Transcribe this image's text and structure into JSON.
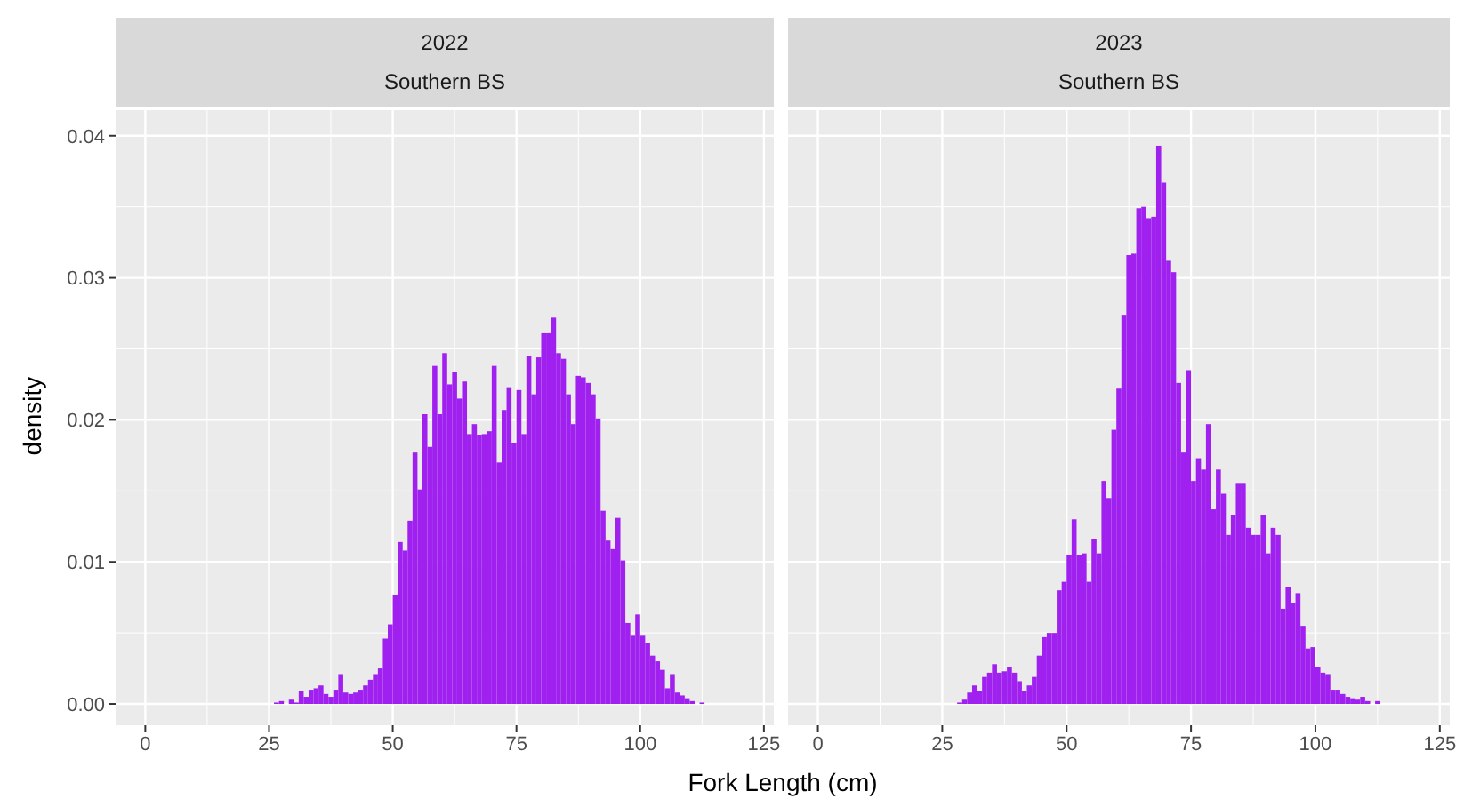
{
  "chart_data": [
    {
      "type": "histogram",
      "title": "2022",
      "subtitle": "Southern BS",
      "xlabel": "Fork Length (cm)",
      "ylabel": "density",
      "color": "#a020f0",
      "bins": [
        26,
        27,
        28,
        29,
        30,
        31,
        32,
        33,
        34,
        35,
        36,
        37,
        38,
        39,
        40,
        41,
        42,
        43,
        44,
        45,
        46,
        47,
        48,
        49,
        50,
        51,
        52,
        53,
        54,
        55,
        56,
        57,
        58,
        59,
        60,
        61,
        62,
        63,
        64,
        65,
        66,
        67,
        68,
        69,
        70,
        71,
        72,
        73,
        74,
        75,
        76,
        77,
        78,
        79,
        80,
        81,
        82,
        83,
        84,
        85,
        86,
        87,
        88,
        89,
        90,
        91,
        92,
        93,
        94,
        95,
        96,
        97,
        98,
        99,
        100,
        101,
        102,
        103,
        104,
        105,
        106,
        107,
        108,
        109,
        110,
        111,
        112,
        113
      ],
      "values": [
        0.0001,
        0.0002,
        0,
        0.0003,
        0.0001,
        0.0009,
        0.0005,
        0.001,
        0.0011,
        0.0013,
        0.0007,
        0.0005,
        0.001,
        0.0021,
        0.0008,
        0.0007,
        0.0008,
        0.001,
        0.0013,
        0.0017,
        0.0021,
        0.0025,
        0.0046,
        0.0056,
        0.0077,
        0.0114,
        0.0108,
        0.0129,
        0.0177,
        0.0151,
        0.0204,
        0.0181,
        0.0238,
        0.0204,
        0.0247,
        0.0225,
        0.0234,
        0.0215,
        0.0227,
        0.019,
        0.0197,
        0.0189,
        0.019,
        0.0192,
        0.0238,
        0.017,
        0.0207,
        0.0223,
        0.0184,
        0.0221,
        0.019,
        0.0245,
        0.0218,
        0.0244,
        0.0261,
        0.0261,
        0.0272,
        0.0247,
        0.0243,
        0.0218,
        0.0197,
        0.0231,
        0.023,
        0.0226,
        0.0218,
        0.0201,
        0.0136,
        0.0115,
        0.0109,
        0.0131,
        0.0101,
        0.0057,
        0.0048,
        0.0063,
        0.0048,
        0.0043,
        0.0034,
        0.003,
        0.0024,
        0.0011,
        0.0021,
        0.0008,
        0.0006,
        0.0004,
        0.0002,
        0,
        0.0001
      ],
      "xlim": [
        -6,
        127
      ],
      "xticks": [
        0,
        25,
        50,
        75,
        100,
        125
      ],
      "ylim": [
        -0.0015,
        0.0418
      ],
      "yticks": [
        {
          "value": 0,
          "label": "0.00"
        },
        {
          "value": 0.01,
          "label": "0.01"
        },
        {
          "value": 0.02,
          "label": "0.02"
        },
        {
          "value": 0.03,
          "label": "0.03"
        },
        {
          "value": 0.04,
          "label": "0.04"
        }
      ],
      "grid": true
    },
    {
      "type": "histogram",
      "title": "2023",
      "subtitle": "Southern BS",
      "color": "#a020f0",
      "bins": [
        28,
        29,
        30,
        31,
        32,
        33,
        34,
        35,
        36,
        37,
        38,
        39,
        40,
        41,
        42,
        43,
        44,
        45,
        46,
        47,
        48,
        49,
        50,
        51,
        52,
        53,
        54,
        55,
        56,
        57,
        58,
        59,
        60,
        61,
        62,
        63,
        64,
        65,
        66,
        67,
        68,
        69,
        70,
        71,
        72,
        73,
        74,
        75,
        76,
        77,
        78,
        79,
        80,
        81,
        82,
        83,
        84,
        85,
        86,
        87,
        88,
        89,
        90,
        91,
        92,
        93,
        94,
        95,
        96,
        97,
        98,
        99,
        100,
        101,
        102,
        103,
        104,
        105,
        106,
        107,
        108,
        109,
        110,
        111,
        112,
        113
      ],
      "values": [
        0.0001,
        0.0003,
        0.0008,
        0.0013,
        0.0009,
        0.0019,
        0.0022,
        0.0028,
        0.0022,
        0.0023,
        0.0026,
        0.0022,
        0.0016,
        0.0009,
        0.0013,
        0.0019,
        0.0034,
        0.0047,
        0.005,
        0.005,
        0.008,
        0.0086,
        0.0105,
        0.013,
        0.0105,
        0.0106,
        0.0086,
        0.0116,
        0.0106,
        0.0157,
        0.0145,
        0.0193,
        0.0222,
        0.0274,
        0.0316,
        0.0317,
        0.0349,
        0.035,
        0.0342,
        0.0343,
        0.0393,
        0.0367,
        0.0312,
        0.0304,
        0.0226,
        0.0177,
        0.0235,
        0.0157,
        0.0173,
        0.0165,
        0.0197,
        0.0137,
        0.0165,
        0.0148,
        0.0119,
        0.0133,
        0.0155,
        0.0155,
        0.0124,
        0.0119,
        0.0119,
        0.0133,
        0.0106,
        0.0124,
        0.0119,
        0.0067,
        0.0082,
        0.0071,
        0.0078,
        0.0055,
        0.0039,
        0.004,
        0.0026,
        0.0022,
        0.0021,
        0.001,
        0.001,
        0.0007,
        0.0005,
        0.0004,
        0.0003,
        0.0005,
        0.0002,
        0,
        0.0002
      ],
      "xlim": [
        -6,
        127
      ],
      "xticks": [
        0,
        25,
        50,
        75,
        100,
        125
      ],
      "ylim": [
        -0.0015,
        0.0418
      ],
      "yticks": [
        0,
        0.01,
        0.02,
        0.03,
        0.04
      ],
      "grid": true,
      "tick_labels": "x"
    }
  ]
}
